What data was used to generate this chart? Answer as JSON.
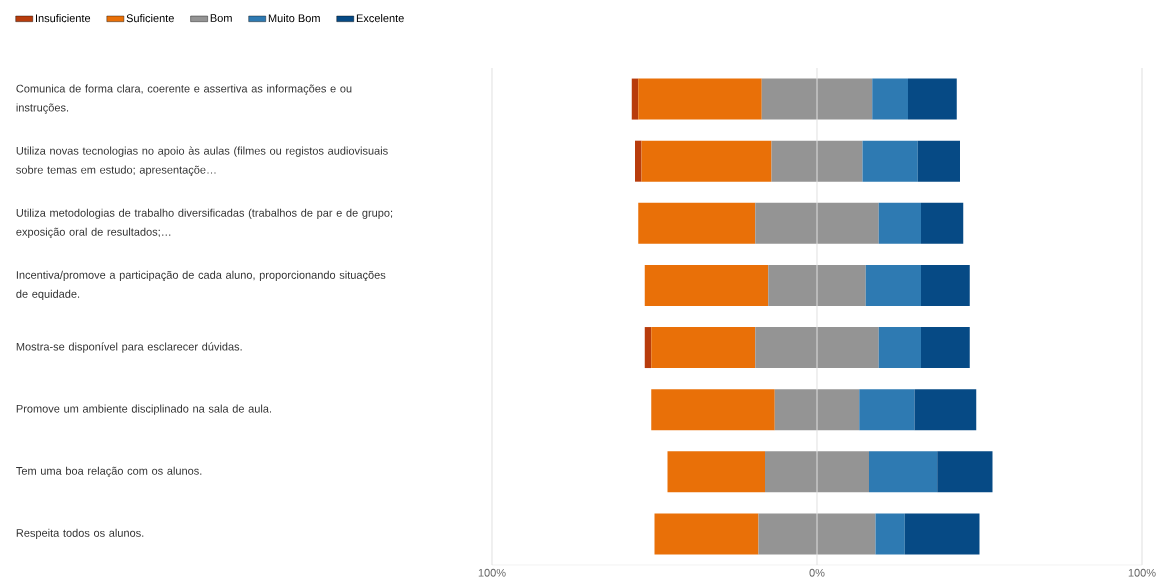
{
  "chart_data": {
    "type": "bar",
    "orientation": "horizontal",
    "categories": [
      "Comunica de forma clara, coerente e assertiva as informações e ou instruções.",
      "Utiliza novas tecnologias no apoio às aulas (filmes ou registos audiovisuais sobre temas em estudo; apresentaçõe…",
      "Utiliza metodologias de trabalho diversificadas (trabalhos de par e de grupo; exposição oral de resultados;…",
      "Incentiva/promove a participação de cada aluno, proporcionando situações de equidade.",
      "Mostra-se disponível para esclarecer dúvidas.",
      "Promove um ambiente disciplinado na sala de aula.",
      "Tem uma boa relação com os alunos.",
      "Respeita todos os alunos."
    ],
    "series": [
      {
        "name": "Insuficiente",
        "color": "#b83c0c",
        "values": [
          2,
          2,
          null,
          null,
          2,
          null,
          null,
          null
        ],
        "base": [
          -57,
          -56,
          null,
          null,
          -53,
          null,
          null,
          null
        ]
      },
      {
        "name": "Suficiente",
        "color": "#e97008",
        "values": [
          38,
          40,
          36,
          38,
          32,
          38,
          30,
          32
        ],
        "base": [
          -55,
          -54,
          -55,
          -53,
          -51,
          -51,
          -46,
          -50
        ]
      },
      {
        "name": "Bom",
        "color": "#949494",
        "values": [
          34,
          28,
          38,
          30,
          38,
          26,
          32,
          36
        ],
        "base": [
          -17,
          -14,
          -19,
          -15,
          -19,
          -13,
          -16,
          -18
        ]
      },
      {
        "name": "Muito Bom",
        "color": "#2e7ab2",
        "values": [
          11,
          17,
          13,
          17,
          13,
          17,
          21,
          9
        ],
        "base": [
          17,
          14,
          19,
          15,
          19,
          13,
          16,
          18
        ]
      },
      {
        "name": "Excelente",
        "color": "#064a85",
        "values": [
          15,
          13,
          13,
          15,
          15,
          19,
          17,
          23
        ],
        "base": [
          28,
          31,
          32,
          32,
          32,
          30,
          37,
          27
        ]
      }
    ],
    "xlim": [
      -100,
      100
    ],
    "xticks": [
      {
        "value": -100,
        "label": "100%"
      },
      {
        "value": 0,
        "label": "0%"
      },
      {
        "value": 100,
        "label": "100%"
      }
    ],
    "grid": "x",
    "legend": "top left"
  }
}
